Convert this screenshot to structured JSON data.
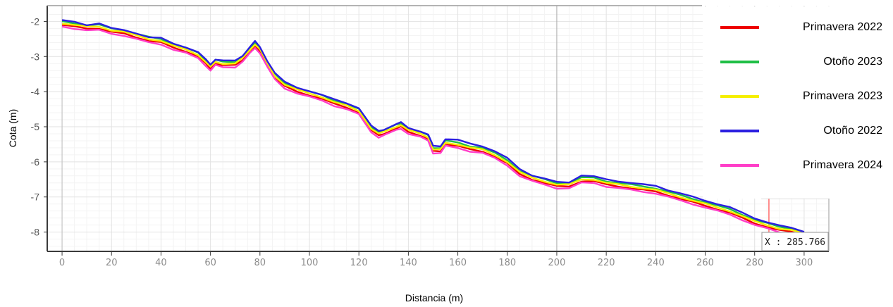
{
  "chart_data": {
    "type": "line",
    "xlabel": "Distancia (m)",
    "ylabel": "Cota (m)",
    "xlim": [
      -6,
      310
    ],
    "ylim": [
      -8.55,
      -1.55
    ],
    "x_ticks": [
      0,
      20,
      40,
      60,
      80,
      100,
      120,
      140,
      160,
      180,
      200,
      220,
      240,
      260,
      280,
      300
    ],
    "y_ticks": [
      -2,
      -3,
      -4,
      -5,
      -6,
      -7,
      -8
    ],
    "grid": true,
    "legend_position": "top-right",
    "cursor": {
      "x": 285.766,
      "label": "X : 285.766",
      "color": "#ff6b6b"
    },
    "reference_line_x": 200,
    "series": [
      {
        "name": "Primavera 2022",
        "color": "#ee0000",
        "x": [
          0,
          5,
          10,
          15,
          20,
          25,
          30,
          35,
          40,
          45,
          50,
          55,
          58,
          60,
          62,
          65,
          70,
          73,
          76,
          78,
          80,
          83,
          86,
          90,
          95,
          100,
          105,
          110,
          115,
          120,
          125,
          128,
          130,
          135,
          137,
          140,
          145,
          148,
          150,
          153,
          155,
          160,
          165,
          170,
          175,
          180,
          185,
          190,
          195,
          200,
          205,
          210,
          215,
          220,
          225,
          230,
          235,
          240,
          245,
          250,
          255,
          260,
          265,
          270,
          275,
          280,
          285,
          290,
          295,
          300
        ],
        "y": [
          -2.1,
          -2.15,
          -2.2,
          -2.2,
          -2.3,
          -2.35,
          -2.45,
          -2.55,
          -2.6,
          -2.75,
          -2.85,
          -3.0,
          -3.2,
          -3.35,
          -3.2,
          -3.25,
          -3.25,
          -3.1,
          -2.85,
          -2.7,
          -2.85,
          -3.25,
          -3.6,
          -3.85,
          -4.0,
          -4.1,
          -4.2,
          -4.35,
          -4.45,
          -4.6,
          -5.1,
          -5.25,
          -5.2,
          -5.05,
          -5.0,
          -5.15,
          -5.25,
          -5.35,
          -5.7,
          -5.7,
          -5.5,
          -5.55,
          -5.65,
          -5.7,
          -5.85,
          -6.05,
          -6.35,
          -6.5,
          -6.6,
          -6.7,
          -6.7,
          -6.55,
          -6.55,
          -6.65,
          -6.7,
          -6.75,
          -6.8,
          -6.85,
          -6.95,
          -7.05,
          -7.15,
          -7.25,
          -7.35,
          -7.45,
          -7.6,
          -7.75,
          -7.85,
          -7.95,
          -8.0,
          -8.1
        ]
      },
      {
        "name": "Otoño 2023",
        "color": "#1fbf46",
        "x": [
          0,
          5,
          10,
          15,
          20,
          25,
          30,
          35,
          40,
          45,
          50,
          55,
          58,
          60,
          62,
          65,
          70,
          73,
          76,
          78,
          80,
          83,
          86,
          90,
          95,
          100,
          105,
          110,
          115,
          120,
          125,
          128,
          130,
          135,
          137,
          140,
          145,
          148,
          150,
          153,
          155,
          160,
          165,
          170,
          175,
          180,
          185,
          190,
          195,
          200,
          205,
          210,
          215,
          220,
          225,
          230,
          235,
          240,
          245,
          250,
          255,
          260,
          265,
          270,
          275,
          280,
          285,
          290,
          295,
          300
        ],
        "y": [
          -2.0,
          -2.05,
          -2.1,
          -2.1,
          -2.2,
          -2.25,
          -2.35,
          -2.45,
          -2.5,
          -2.65,
          -2.75,
          -2.9,
          -3.1,
          -3.25,
          -3.1,
          -3.15,
          -3.15,
          -3.0,
          -2.75,
          -2.6,
          -2.75,
          -3.15,
          -3.5,
          -3.75,
          -3.9,
          -4.0,
          -4.1,
          -4.25,
          -4.35,
          -4.5,
          -5.0,
          -5.15,
          -5.1,
          -4.95,
          -4.9,
          -5.05,
          -5.15,
          -5.25,
          -5.6,
          -5.6,
          -5.4,
          -5.45,
          -5.55,
          -5.6,
          -5.75,
          -5.95,
          -6.25,
          -6.4,
          -6.5,
          -6.6,
          -6.6,
          -6.45,
          -6.45,
          -6.55,
          -6.6,
          -6.65,
          -6.7,
          -6.75,
          -6.85,
          -6.95,
          -7.05,
          -7.15,
          -7.25,
          -7.35,
          -7.5,
          -7.65,
          -7.75,
          -7.85,
          -7.9,
          -8.0
        ]
      },
      {
        "name": "Primavera 2023",
        "color": "#f5ef00",
        "x": [
          0,
          5,
          10,
          15,
          20,
          25,
          30,
          35,
          40,
          45,
          50,
          55,
          58,
          60,
          62,
          65,
          70,
          73,
          76,
          78,
          80,
          83,
          86,
          90,
          95,
          100,
          105,
          110,
          115,
          120,
          125,
          128,
          130,
          135,
          137,
          140,
          145,
          148,
          150,
          153,
          155,
          160,
          165,
          170,
          175,
          180,
          185,
          190,
          195,
          200,
          205,
          210,
          215,
          220,
          225,
          230,
          235,
          240,
          245,
          250,
          255,
          260,
          265,
          270,
          275,
          280,
          285,
          290,
          295,
          300
        ],
        "y": [
          -2.05,
          -2.1,
          -2.15,
          -2.15,
          -2.25,
          -2.3,
          -2.4,
          -2.5,
          -2.55,
          -2.7,
          -2.8,
          -2.95,
          -3.15,
          -3.3,
          -3.15,
          -3.2,
          -3.2,
          -3.05,
          -2.8,
          -2.65,
          -2.8,
          -3.2,
          -3.55,
          -3.8,
          -3.95,
          -4.05,
          -4.15,
          -4.3,
          -4.4,
          -4.55,
          -5.05,
          -5.2,
          -5.15,
          -5.0,
          -4.95,
          -5.1,
          -5.2,
          -5.3,
          -5.65,
          -5.65,
          -5.45,
          -5.5,
          -5.6,
          -5.65,
          -5.8,
          -6.0,
          -6.3,
          -6.45,
          -6.55,
          -6.65,
          -6.65,
          -6.5,
          -6.5,
          -6.6,
          -6.65,
          -6.7,
          -6.75,
          -6.8,
          -6.9,
          -7.0,
          -7.1,
          -7.2,
          -7.3,
          -7.4,
          -7.55,
          -7.7,
          -7.8,
          -7.9,
          -7.95,
          -8.05
        ]
      },
      {
        "name": "Otoño 2022",
        "color": "#2b1fe0",
        "x": [
          0,
          5,
          10,
          15,
          20,
          25,
          30,
          35,
          40,
          45,
          50,
          55,
          58,
          60,
          62,
          65,
          70,
          73,
          76,
          78,
          80,
          83,
          86,
          90,
          95,
          100,
          105,
          110,
          115,
          120,
          125,
          128,
          130,
          135,
          137,
          140,
          145,
          148,
          150,
          153,
          155,
          160,
          165,
          170,
          175,
          180,
          185,
          190,
          195,
          200,
          205,
          210,
          215,
          220,
          225,
          230,
          235,
          240,
          245,
          250,
          255,
          260,
          265,
          270,
          275,
          280,
          285,
          290,
          295,
          300
        ],
        "y": [
          -1.97,
          -2.02,
          -2.1,
          -2.05,
          -2.2,
          -2.25,
          -2.33,
          -2.45,
          -2.48,
          -2.63,
          -2.73,
          -2.88,
          -3.08,
          -3.22,
          -3.08,
          -3.12,
          -3.12,
          -2.97,
          -2.72,
          -2.57,
          -2.73,
          -3.12,
          -3.47,
          -3.73,
          -3.88,
          -3.98,
          -4.1,
          -4.22,
          -4.32,
          -4.47,
          -4.98,
          -5.12,
          -5.08,
          -4.93,
          -4.88,
          -5.03,
          -5.13,
          -5.23,
          -5.55,
          -5.55,
          -5.35,
          -5.38,
          -5.48,
          -5.55,
          -5.7,
          -5.9,
          -6.2,
          -6.38,
          -6.48,
          -6.58,
          -6.58,
          -6.38,
          -6.42,
          -6.5,
          -6.55,
          -6.6,
          -6.65,
          -6.68,
          -6.8,
          -6.9,
          -7.0,
          -7.1,
          -7.2,
          -7.3,
          -7.45,
          -7.6,
          -7.72,
          -7.82,
          -7.88,
          -7.98
        ]
      },
      {
        "name": "Primavera 2024",
        "color": "#ff3ec8",
        "x": [
          0,
          5,
          10,
          15,
          20,
          25,
          30,
          35,
          40,
          45,
          50,
          55,
          58,
          60,
          62,
          65,
          70,
          73,
          76,
          78,
          80,
          83,
          86,
          90,
          95,
          100,
          105,
          110,
          115,
          120,
          125,
          128,
          130,
          135,
          137,
          140,
          145,
          148,
          150,
          153,
          155,
          160,
          165,
          170,
          175,
          180,
          185,
          190,
          195,
          200,
          205,
          210,
          215,
          220,
          225,
          230,
          235,
          240,
          245,
          250,
          255,
          260,
          265,
          270,
          275,
          280,
          285,
          290,
          295,
          300
        ],
        "y": [
          -2.15,
          -2.2,
          -2.25,
          -2.25,
          -2.35,
          -2.4,
          -2.5,
          -2.6,
          -2.65,
          -2.8,
          -2.9,
          -3.05,
          -3.25,
          -3.4,
          -3.25,
          -3.3,
          -3.3,
          -3.15,
          -2.9,
          -2.75,
          -2.9,
          -3.3,
          -3.65,
          -3.9,
          -4.05,
          -4.15,
          -4.25,
          -4.4,
          -4.5,
          -4.65,
          -5.15,
          -5.3,
          -5.25,
          -5.1,
          -5.05,
          -5.2,
          -5.3,
          -5.4,
          -5.75,
          -5.75,
          -5.55,
          -5.6,
          -5.7,
          -5.75,
          -5.9,
          -6.1,
          -6.4,
          -6.55,
          -6.65,
          -6.75,
          -6.75,
          -6.6,
          -6.6,
          -6.7,
          -6.75,
          -6.8,
          -6.85,
          -6.9,
          -7.0,
          -7.1,
          -7.2,
          -7.3,
          -7.4,
          -7.5,
          -7.65,
          -7.8,
          -7.9,
          -8.0,
          -8.05,
          -8.15
        ]
      }
    ]
  }
}
